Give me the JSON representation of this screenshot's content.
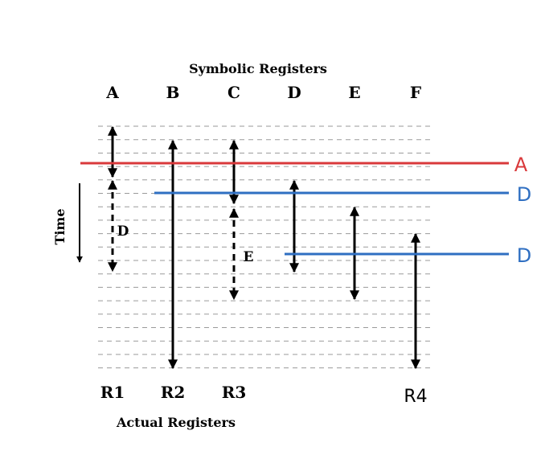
{
  "header": "Symbolic Registers",
  "footer": "Actual Registers",
  "time_label": "Time",
  "columns": [
    {
      "label": "A",
      "register": "R1"
    },
    {
      "label": "B",
      "register": "R2"
    },
    {
      "label": "C",
      "register": "R3"
    },
    {
      "label": "D",
      "register": ""
    },
    {
      "label": "E",
      "register": ""
    },
    {
      "label": "F",
      "register": "R4"
    }
  ],
  "spill_labels": {
    "a": "D",
    "c": "E"
  },
  "cut_lines": [
    {
      "label": "A",
      "color": "#d9393b"
    },
    {
      "label": "D",
      "color": "#2f6fc2"
    },
    {
      "label": "D",
      "color": "#2f6fc2"
    }
  ]
}
